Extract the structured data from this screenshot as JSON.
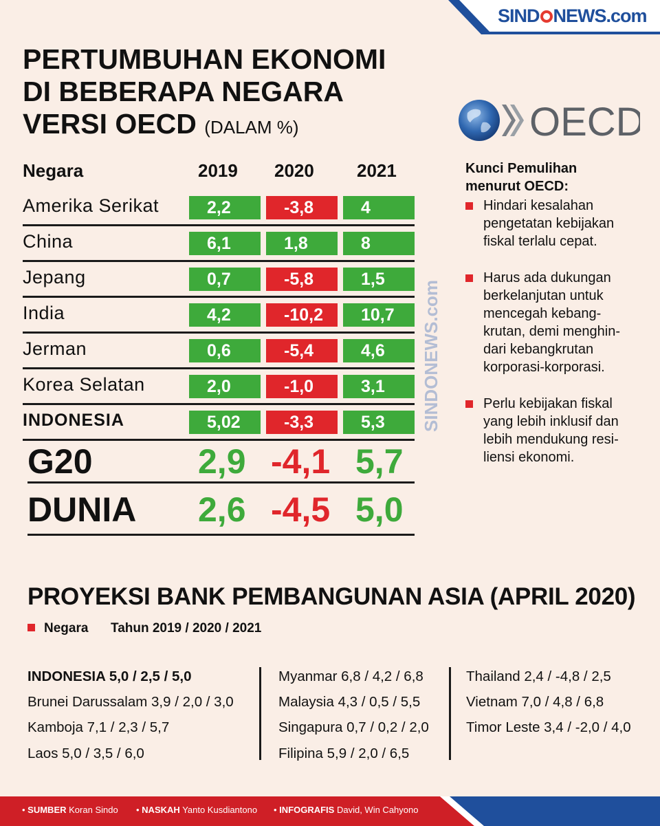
{
  "brand": {
    "name": "SINDONEWS.com",
    "part1": "SIND",
    "part2": "NEWS.com"
  },
  "title": {
    "line1": "PERTUMBUHAN EKONOMI",
    "line2": "DI BEBERAPA NEGARA",
    "line3": "VERSI OECD",
    "unit": "(DALAM %)"
  },
  "oecd_logo_text": "OECD",
  "table": {
    "headers": {
      "country": "Negara",
      "y2019": "2019",
      "y2020": "2020",
      "y2021": "2021"
    },
    "rows": [
      {
        "country": "Amerika Serikat",
        "v2019": "2,2",
        "v2020": "-3,8",
        "v2021": "4"
      },
      {
        "country": "China",
        "v2019": "6,1",
        "v2020": "1,8",
        "v2021": "8"
      },
      {
        "country": "Jepang",
        "v2019": "0,7",
        "v2020": "-5,8",
        "v2021": "1,5"
      },
      {
        "country": "India",
        "v2019": "4,2",
        "v2020": "-10,2",
        "v2021": "10,7"
      },
      {
        "country": "Jerman",
        "v2019": "0,6",
        "v2020": "-5,4",
        "v2021": "4,6"
      },
      {
        "country": "Korea Selatan",
        "v2019": "2,0",
        "v2020": "-1,0",
        "v2021": "3,1"
      },
      {
        "country": "INDONESIA",
        "v2019": "5,02",
        "v2020": "-3,3",
        "v2021": "5,3"
      }
    ],
    "aggregates": [
      {
        "name": "G20",
        "v2019": "2,9",
        "v2020": "-4,1",
        "v2021": "5,7"
      },
      {
        "name": "DUNIA",
        "v2019": "2,6",
        "v2020": "-4,5",
        "v2021": "5,0"
      }
    ],
    "colors": {
      "positive": "#3eaa3b",
      "negative": "#e0262b"
    }
  },
  "watermark": "SINDONEWS.com",
  "kunci": {
    "title_line1": "Kunci Pemulihan",
    "title_line2": "menurut OECD:",
    "bullets": [
      {
        "lines": [
          "Hindari kesalahan",
          "pengetatan kebijakan",
          "fiskal terlalu cepat."
        ]
      },
      {
        "lines": [
          "Harus ada dukungan",
          "berkelanjutan untuk",
          "mencegah kebang-",
          "krutan, demi menghin-",
          "dari kebangkrutan",
          "korporasi-korporasi."
        ]
      },
      {
        "lines": [
          "Perlu kebijakan fiskal",
          "yang lebih inklusif dan",
          "lebih mendukung resi-",
          "liensi ekonomi."
        ]
      }
    ]
  },
  "adb": {
    "title": "PROYEKSI BANK PEMBANGUNAN ASIA (APRIL 2020)",
    "legend_country": "Negara",
    "legend_years": "Tahun 2019 / 2020 / 2021",
    "col1": [
      "INDONESIA 5,0 / 2,5 / 5,0",
      "Brunei Darussalam 3,9 / 2,0 / 3,0",
      "Kamboja 7,1 / 2,3 / 5,7",
      "Laos 5,0 / 3,5 / 6,0"
    ],
    "col2": [
      "Myanmar 6,8 / 4,2 / 6,8",
      "Malaysia 4,3 / 0,5 / 5,5",
      "Singapura 0,7 / 0,2 / 2,0",
      "Filipina 5,9 / 2,0 / 6,5"
    ],
    "col3": [
      "Thailand 2,4 / -4,8 / 2,5",
      "Vietnam 7,0 / 4,8 / 6,8",
      "Timor Leste 3,4 / -2,0 / 4,0"
    ]
  },
  "footer": {
    "sumber_label": "SUMBER",
    "sumber_value": "Koran Sindo",
    "naskah_label": "NASKAH",
    "naskah_value": "Yanto Kusdiantono",
    "infografis_label": "INFOGRAFIS",
    "infografis_value": "David, Win Cahyono"
  }
}
